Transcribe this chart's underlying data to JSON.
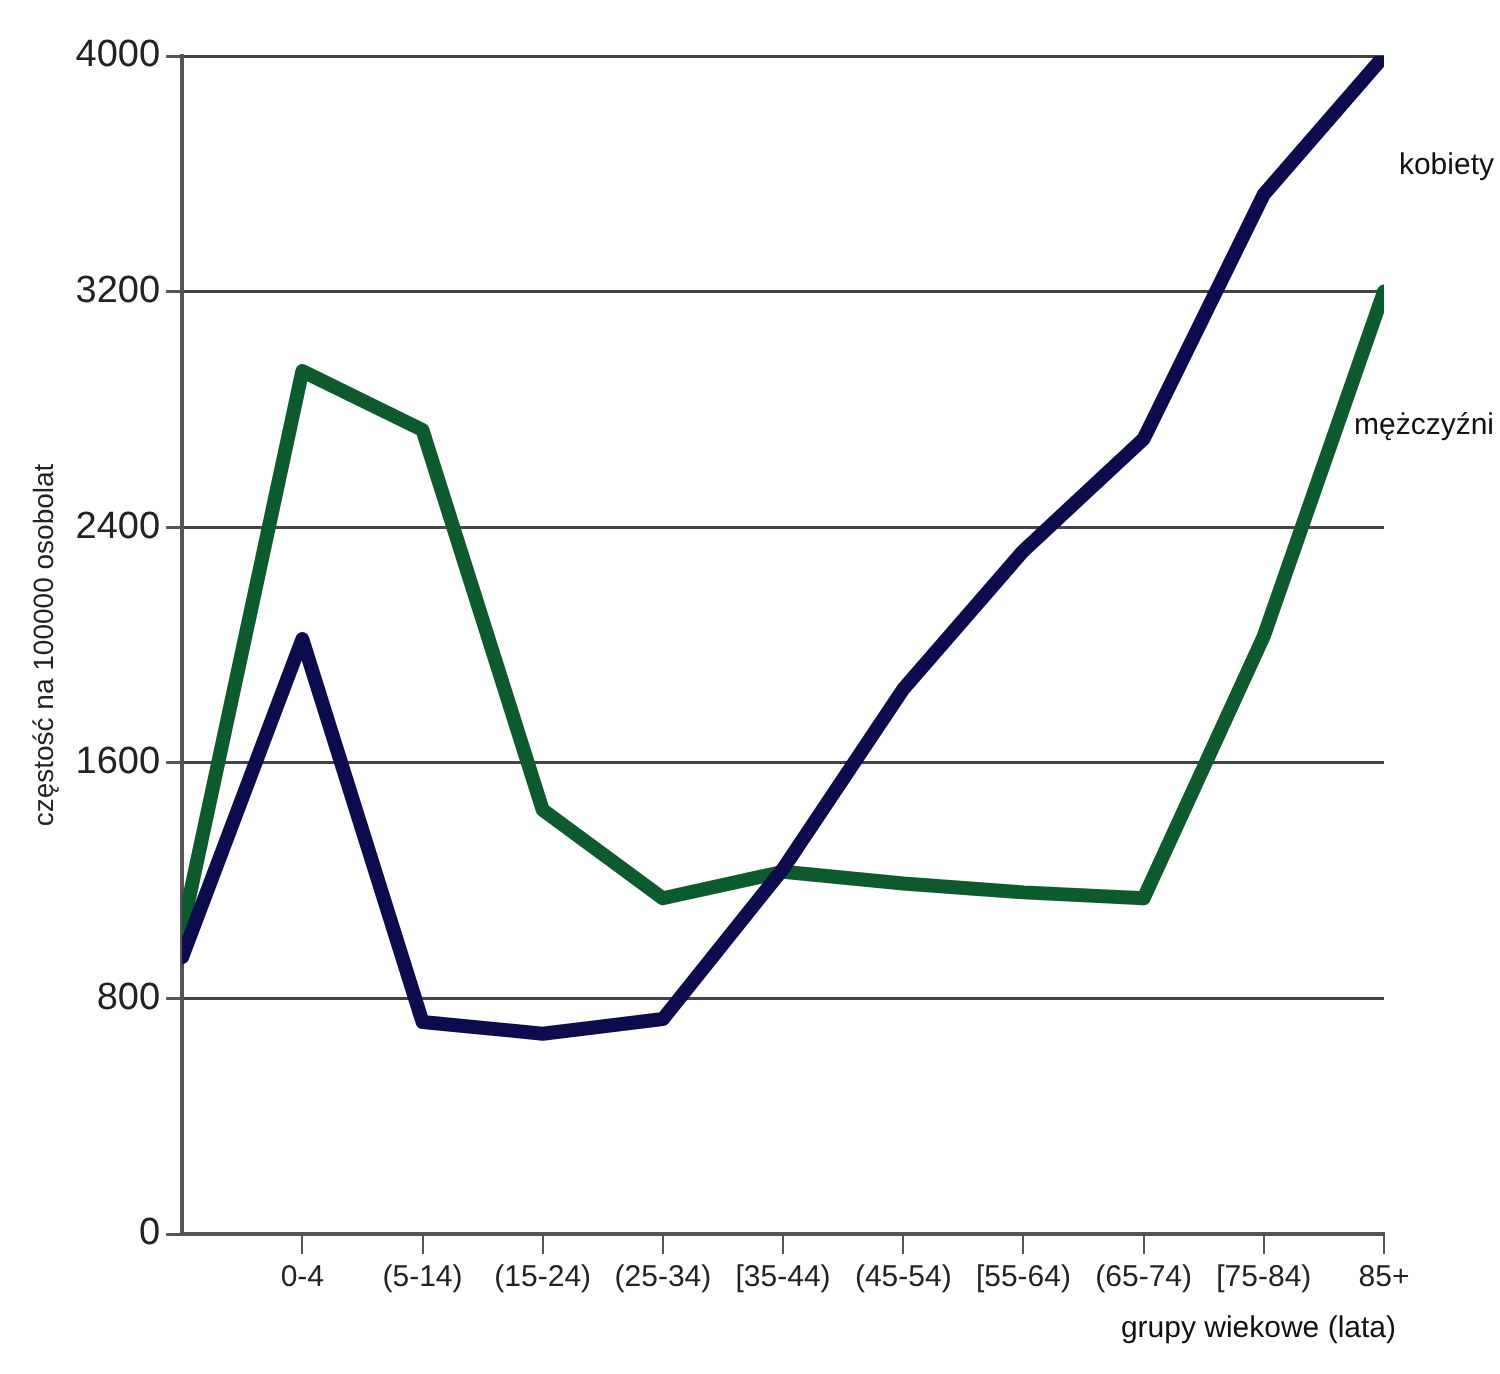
{
  "chart_data": {
    "type": "line",
    "xlabel": "grupy wiekowe (lata)",
    "ylabel": "częstość na 100000 osobolat",
    "categories": [
      null,
      "0-4",
      "(5-14)",
      "(15-24)",
      "(25-34)",
      "[35-44)",
      "(45-54)",
      "[55-64)",
      "(65-74)",
      "[75-84)",
      "85+"
    ],
    "series": [
      {
        "name": "kobiety",
        "color": "#0b0b4d",
        "values": [
          940,
          2020,
          720,
          680,
          730,
          1240,
          1850,
          2320,
          2700,
          3530,
          4000
        ]
      },
      {
        "name": "mężczyźni",
        "color": "#0d5a2c",
        "values": [
          1030,
          2930,
          2730,
          1440,
          1140,
          1230,
          1190,
          1160,
          1140,
          2030,
          3200
        ]
      }
    ],
    "ylim": [
      0,
      4000
    ],
    "yticks": [
      0,
      800,
      1600,
      2400,
      3200,
      4000
    ],
    "grid": "y",
    "legend": false,
    "marker": "none",
    "line_style": "solid"
  }
}
